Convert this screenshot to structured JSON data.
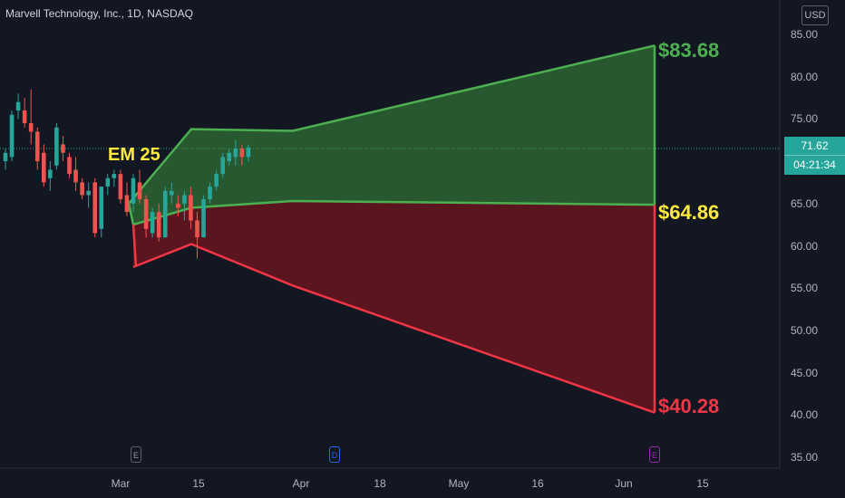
{
  "header": {
    "title": "Marvell Technology, Inc., 1D, NASDAQ",
    "currency": "USD"
  },
  "price_tag": {
    "price": "71.62",
    "countdown": "04:21:34"
  },
  "colors": {
    "up": "#26a69a",
    "down": "#ef5350",
    "upper_band": "#4caf50",
    "lower_band": "#f23645",
    "em_label": "#ffeb3b"
  },
  "annotations": {
    "em_label": "EM 25",
    "upper_level": "$83.68",
    "middle_level": "$64.86",
    "lower_level": "$40.28"
  },
  "events": [
    {
      "letter": "E",
      "color": "#5d606b"
    },
    {
      "letter": "D",
      "color": "#2962ff"
    },
    {
      "letter": "E",
      "color": "#9c27b0"
    }
  ],
  "chart_data": {
    "type": "candlestick",
    "y_axis": {
      "min": 35,
      "max": 85,
      "ticks": [
        "85.00",
        "80.00",
        "75.00",
        "70.00",
        "65.00",
        "60.00",
        "55.00",
        "50.00",
        "45.00",
        "40.00",
        "35.00"
      ]
    },
    "x_axis": {
      "ticks": [
        "Mar",
        "15",
        "Apr",
        "18",
        "May",
        "16",
        "Jun",
        "15"
      ]
    },
    "candles": [
      {
        "o": 70.0,
        "h": 71.5,
        "l": 69.0,
        "c": 71.0
      },
      {
        "o": 70.5,
        "h": 76.0,
        "l": 70.0,
        "c": 75.5
      },
      {
        "o": 76.0,
        "h": 78.0,
        "l": 75.0,
        "c": 77.0
      },
      {
        "o": 76.0,
        "h": 77.5,
        "l": 74.0,
        "c": 74.5
      },
      {
        "o": 74.5,
        "h": 78.5,
        "l": 72.0,
        "c": 73.5
      },
      {
        "o": 73.5,
        "h": 74.0,
        "l": 69.0,
        "c": 70.0
      },
      {
        "o": 71.0,
        "h": 72.0,
        "l": 67.0,
        "c": 67.5
      },
      {
        "o": 68.0,
        "h": 70.0,
        "l": 66.5,
        "c": 69.0
      },
      {
        "o": 69.5,
        "h": 74.5,
        "l": 69.0,
        "c": 74.0
      },
      {
        "o": 72.0,
        "h": 73.0,
        "l": 70.0,
        "c": 71.0
      },
      {
        "o": 70.5,
        "h": 71.0,
        "l": 68.0,
        "c": 68.5
      },
      {
        "o": 69.0,
        "h": 70.5,
        "l": 66.5,
        "c": 67.5
      },
      {
        "o": 67.5,
        "h": 68.0,
        "l": 65.5,
        "c": 66.0
      },
      {
        "o": 66.0,
        "h": 67.5,
        "l": 64.5,
        "c": 66.5
      },
      {
        "o": 67.5,
        "h": 68.0,
        "l": 61.0,
        "c": 61.5
      },
      {
        "o": 62.0,
        "h": 67.0,
        "l": 61.0,
        "c": 67.0
      },
      {
        "o": 67.0,
        "h": 68.5,
        "l": 66.0,
        "c": 68.0
      },
      {
        "o": 68.0,
        "h": 69.0,
        "l": 67.0,
        "c": 68.5
      },
      {
        "o": 68.5,
        "h": 69.0,
        "l": 65.0,
        "c": 65.5
      },
      {
        "o": 66.0,
        "h": 67.5,
        "l": 63.5,
        "c": 64.0
      },
      {
        "o": 65.0,
        "h": 68.5,
        "l": 64.0,
        "c": 68.0
      },
      {
        "o": 67.5,
        "h": 69.0,
        "l": 65.0,
        "c": 65.5
      },
      {
        "o": 65.5,
        "h": 66.0,
        "l": 61.0,
        "c": 62.0
      },
      {
        "o": 61.5,
        "h": 64.5,
        "l": 61.0,
        "c": 64.0
      },
      {
        "o": 64.0,
        "h": 65.0,
        "l": 60.5,
        "c": 61.0
      },
      {
        "o": 61.0,
        "h": 67.0,
        "l": 61.0,
        "c": 66.5
      },
      {
        "o": 66.0,
        "h": 67.5,
        "l": 65.0,
        "c": 66.5
      },
      {
        "o": 65.0,
        "h": 66.0,
        "l": 63.5,
        "c": 64.5
      },
      {
        "o": 65.0,
        "h": 66.5,
        "l": 63.0,
        "c": 66.0
      },
      {
        "o": 66.0,
        "h": 67.0,
        "l": 62.0,
        "c": 63.0
      },
      {
        "o": 63.0,
        "h": 64.0,
        "l": 58.5,
        "c": 61.0
      },
      {
        "o": 61.0,
        "h": 66.0,
        "l": 61.0,
        "c": 65.5
      },
      {
        "o": 65.5,
        "h": 67.5,
        "l": 65.0,
        "c": 67.0
      },
      {
        "o": 67.0,
        "h": 69.0,
        "l": 66.5,
        "c": 68.5
      },
      {
        "o": 68.5,
        "h": 71.0,
        "l": 68.0,
        "c": 70.5
      },
      {
        "o": 70.0,
        "h": 71.5,
        "l": 69.5,
        "c": 71.0
      },
      {
        "o": 70.5,
        "h": 72.5,
        "l": 69.5,
        "c": 71.5
      },
      {
        "o": 71.5,
        "h": 72.0,
        "l": 69.5,
        "c": 70.5
      },
      {
        "o": 70.5,
        "h": 72.0,
        "l": 70.0,
        "c": 71.62
      }
    ],
    "expected_move": {
      "upper": [
        {
          "y": 65.0
        },
        {
          "y": 73.8
        },
        {
          "y": 73.6
        },
        {
          "y": 83.68
        }
      ],
      "middle": [
        {
          "y": 62.5
        },
        {
          "y": 64.5
        },
        {
          "y": 65.3
        },
        {
          "y": 64.86
        }
      ],
      "lower": [
        {
          "y": 57.5
        },
        {
          "y": 60.2
        },
        {
          "y": 55.3
        },
        {
          "y": 40.28
        }
      ]
    }
  }
}
